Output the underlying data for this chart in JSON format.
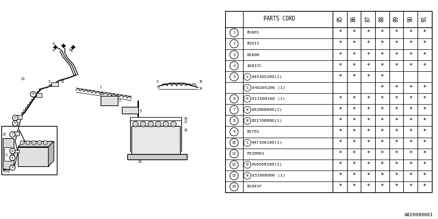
{
  "ref_code": "A820000061",
  "rows": [
    {
      "num": "1",
      "prefix": "",
      "code": "81601",
      "stars": [
        true,
        true,
        true,
        true,
        true,
        true,
        true
      ]
    },
    {
      "num": "2",
      "prefix": "",
      "code": "81611",
      "stars": [
        true,
        true,
        true,
        true,
        true,
        true,
        true
      ]
    },
    {
      "num": "3",
      "prefix": "",
      "code": "81608",
      "stars": [
        true,
        true,
        true,
        true,
        true,
        true,
        true
      ]
    },
    {
      "num": "4",
      "prefix": "",
      "code": "42037C",
      "stars": [
        true,
        true,
        true,
        true,
        true,
        true,
        true
      ]
    },
    {
      "num": "5",
      "prefix": "S",
      "code": "043105200(1)",
      "stars": [
        true,
        true,
        true,
        true,
        false,
        false,
        false
      ],
      "sub": "a"
    },
    {
      "num": "5",
      "prefix": "S",
      "code": "040205206 (1)",
      "stars": [
        false,
        false,
        false,
        true,
        true,
        true,
        true
      ],
      "sub": "b"
    },
    {
      "num": "6",
      "prefix": "B",
      "code": "011508160 (1)",
      "stars": [
        true,
        true,
        true,
        true,
        true,
        true,
        true
      ]
    },
    {
      "num": "7",
      "prefix": "W",
      "code": "032008000(2)",
      "stars": [
        true,
        true,
        true,
        true,
        true,
        true,
        true
      ]
    },
    {
      "num": "8",
      "prefix": "N",
      "code": "021708000(1)",
      "stars": [
        true,
        true,
        true,
        true,
        true,
        true,
        true
      ]
    },
    {
      "num": "9",
      "prefix": "",
      "code": "81701",
      "stars": [
        true,
        true,
        true,
        true,
        true,
        true,
        true
      ]
    },
    {
      "num": "10",
      "prefix": "S",
      "code": "047106160(1)",
      "stars": [
        true,
        true,
        true,
        true,
        true,
        true,
        true
      ]
    },
    {
      "num": "11",
      "prefix": "",
      "code": "P320001",
      "stars": [
        true,
        true,
        true,
        true,
        true,
        true,
        true
      ]
    },
    {
      "num": "12",
      "prefix": "B",
      "code": "016508160(1)",
      "stars": [
        true,
        true,
        true,
        true,
        true,
        true,
        true
      ]
    },
    {
      "num": "13",
      "prefix": "W",
      "code": "031008000 (1)",
      "stars": [
        true,
        true,
        true,
        true,
        true,
        true,
        true
      ]
    },
    {
      "num": "14",
      "prefix": "",
      "code": "81041F",
      "stars": [
        true,
        true,
        true,
        true,
        true,
        true,
        true
      ]
    }
  ],
  "year_labels": [
    "85",
    "86",
    "87",
    "88",
    "89",
    "90",
    "91"
  ],
  "bg_color": "#ffffff"
}
